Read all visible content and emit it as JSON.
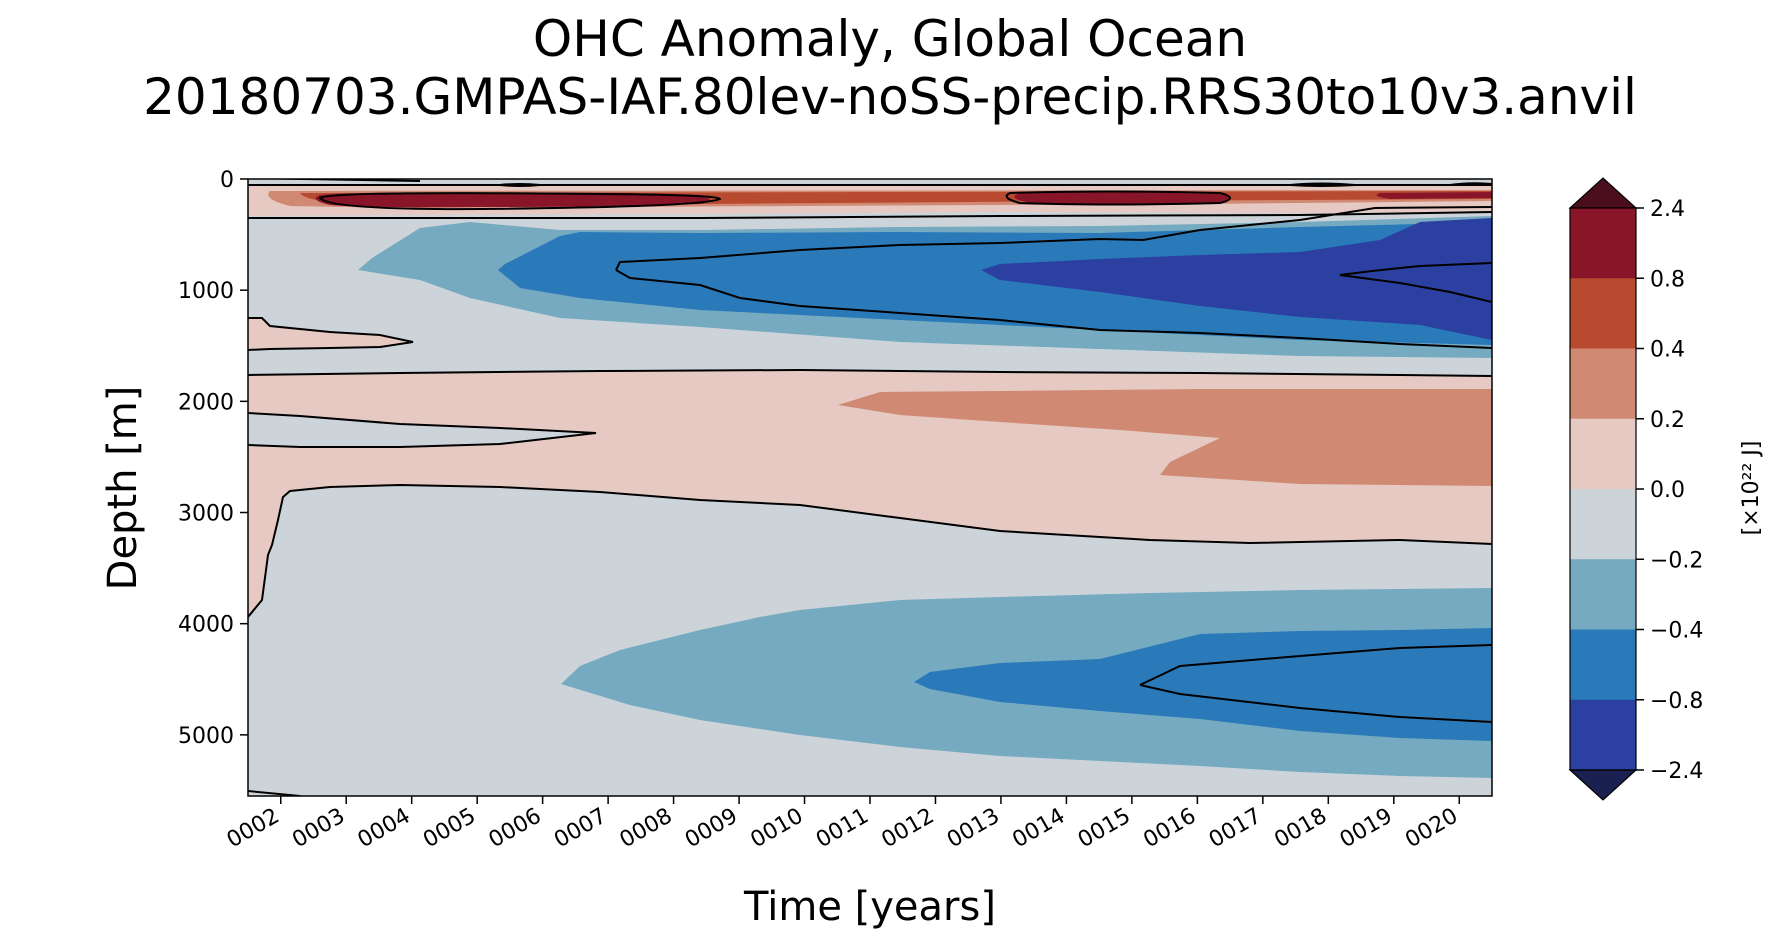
{
  "title_line1": "OHC Anomaly, Global Ocean",
  "title_line2": "20180703.GMPAS-IAF.80lev-noSS-precip.RRS30to10v3.anvil",
  "chart_data": {
    "type": "heatmap",
    "subtype": "filled-contour",
    "xlabel": "Time [years]",
    "ylabel": "Depth [m]",
    "xticks": [
      "0002",
      "0003",
      "0004",
      "0005",
      "0006",
      "0007",
      "0008",
      "0009",
      "0010",
      "0011",
      "0012",
      "0013",
      "0014",
      "0015",
      "0016",
      "0017",
      "0018",
      "0019",
      "0020"
    ],
    "xlim": [
      1.5,
      20.5
    ],
    "ylim": [
      5550,
      0
    ],
    "yticks": [
      0,
      1000,
      2000,
      3000,
      4000,
      5000
    ],
    "colorbar": {
      "label": "[×10²² J]",
      "levels": [
        2.4,
        0.8,
        0.4,
        0.2,
        0.0,
        -0.2,
        -0.4,
        -0.8,
        -2.4
      ],
      "level_labels": [
        "2.4",
        "0.8",
        "0.4",
        "0.2",
        "0.0",
        "−0.2",
        "−0.4",
        "−0.8",
        "−2.4"
      ],
      "colors": [
        "#891528",
        "#b84a30",
        "#d08a73",
        "#e6c9c2",
        "#ccd4da",
        "#76aac0",
        "#2a7aba",
        "#2b40a0"
      ],
      "extend_max_color": "#4a0e1c",
      "extend_min_color": "#1a2050"
    },
    "regions": [
      {
        "level": "-0.2 to 0.0",
        "time": [
          1.5,
          20.5
        ],
        "depth": [
          0,
          5550
        ]
      },
      {
        "level": "0.0 to 0.2",
        "time": [
          1.5,
          20.5
        ],
        "depth": [
          100,
          350
        ]
      },
      {
        "level": "0.2 to 0.8",
        "time": [
          1.5,
          20.5
        ],
        "depth": [
          150,
          300
        ]
      },
      {
        "level": "0.0 to 0.2",
        "time": [
          1.5,
          4.0
        ],
        "depth": [
          1300,
          1550
        ]
      },
      {
        "level": "0.0 to 0.2",
        "time": [
          1.5,
          20.5
        ],
        "depth": [
          1750,
          3300
        ]
      },
      {
        "level": "0.2 to 0.4",
        "time": [
          10.5,
          20.5
        ],
        "depth": [
          1900,
          2750
        ]
      },
      {
        "level": "-0.4 to -0.2",
        "time": [
          3.3,
          20.5
        ],
        "depth": [
          350,
          1650
        ]
      },
      {
        "level": "-0.8 to -0.4",
        "time": [
          5.8,
          20.5
        ],
        "depth": [
          450,
          1450
        ]
      },
      {
        "level": "-2.4 to -0.8",
        "time": [
          12.6,
          20.5
        ],
        "depth": [
          350,
          1100
        ]
      },
      {
        "level": "-0.4 to -0.2",
        "time": [
          6.3,
          20.5
        ],
        "depth": [
          3700,
          5400
        ]
      },
      {
        "level": "-0.8 to -0.4",
        "time": [
          11.8,
          20.5
        ],
        "depth": [
          4050,
          5050
        ]
      }
    ]
  }
}
